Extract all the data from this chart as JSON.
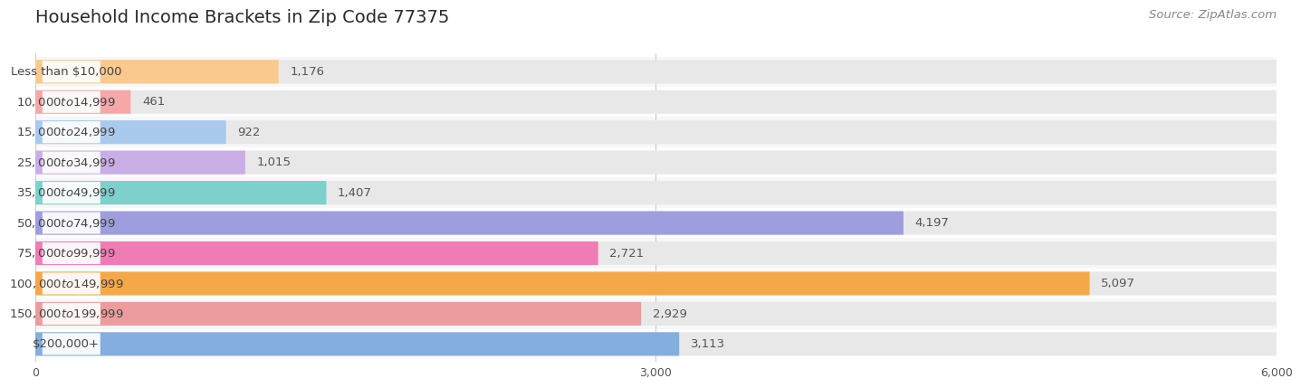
{
  "title": "Household Income Brackets in Zip Code 77375",
  "source": "Source: ZipAtlas.com",
  "categories": [
    "Less than $10,000",
    "$10,000 to $14,999",
    "$15,000 to $24,999",
    "$25,000 to $34,999",
    "$35,000 to $49,999",
    "$50,000 to $74,999",
    "$75,000 to $99,999",
    "$100,000 to $149,999",
    "$150,000 to $199,999",
    "$200,000+"
  ],
  "values": [
    1176,
    461,
    922,
    1015,
    1407,
    4197,
    2721,
    5097,
    2929,
    3113
  ],
  "bar_colors": [
    "#F9C98D",
    "#F4A8A8",
    "#A9CAEE",
    "#C9AEE6",
    "#7DD0CB",
    "#9E9EDE",
    "#F07CB5",
    "#F5A84A",
    "#EC9C9C",
    "#85AEE0"
  ],
  "background_color": "#ffffff",
  "bar_bg_color": "#e8e8e8",
  "row_bg_even": "#f7f7f7",
  "row_bg_odd": "#ffffff",
  "xlim": [
    0,
    6000
  ],
  "xticks": [
    0,
    3000,
    6000
  ],
  "title_fontsize": 14,
  "label_fontsize": 9.5,
  "value_fontsize": 9.5,
  "source_fontsize": 9.5
}
